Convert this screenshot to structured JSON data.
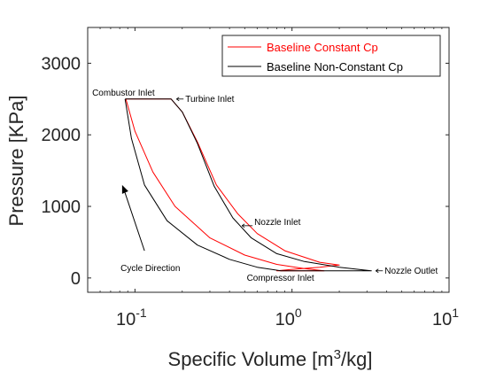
{
  "chart_data": {
    "type": "line",
    "xlabel": "Specific Volume [m",
    "xlabel_sup": "3",
    "xlabel_tail": "/kg]",
    "ylabel": "Pressure [KPa]",
    "x_scale": "log",
    "xlim": [
      0.05,
      10
    ],
    "ylim": [
      -200,
      3500
    ],
    "x_ticks": [
      {
        "value": 0.1,
        "base": "10",
        "exp": "-1"
      },
      {
        "value": 1,
        "base": "10",
        "exp": "0"
      },
      {
        "value": 10,
        "base": "10",
        "exp": "1"
      }
    ],
    "y_ticks": [
      0,
      1000,
      2000,
      3000
    ],
    "y_tick_labels": [
      "0",
      "1000",
      "2000",
      "3000"
    ],
    "grid": false,
    "legend_position": "top-right",
    "series": [
      {
        "name": "Baseline Constant Cp",
        "color": "#ff0000",
        "points": [
          [
            0.0875,
            2500
          ],
          [
            0.1,
            2050
          ],
          [
            0.13,
            1480
          ],
          [
            0.18,
            1000
          ],
          [
            0.3,
            560
          ],
          [
            0.5,
            320
          ],
          [
            0.8,
            190
          ],
          [
            1.2,
            130
          ],
          [
            1.6,
            100
          ],
          [
            1.5,
            100
          ],
          [
            1.2,
            100
          ],
          [
            0.9,
            100
          ],
          [
            0.8,
            100
          ],
          [
            1.0,
            120
          ],
          [
            1.5,
            150
          ],
          [
            2.0,
            180
          ],
          [
            1.5,
            220
          ],
          [
            0.9,
            380
          ],
          [
            0.6,
            620
          ],
          [
            0.45,
            900
          ],
          [
            0.33,
            1300
          ],
          [
            0.25,
            1900
          ],
          [
            0.2,
            2320
          ],
          [
            0.17,
            2500
          ],
          [
            0.0875,
            2500
          ]
        ]
      },
      {
        "name": "Baseline Non-Constant Cp",
        "color": "#000000",
        "points": [
          [
            0.0865,
            2500
          ],
          [
            0.095,
            1950
          ],
          [
            0.115,
            1300
          ],
          [
            0.16,
            800
          ],
          [
            0.25,
            460
          ],
          [
            0.4,
            260
          ],
          [
            0.6,
            150
          ],
          [
            0.85,
            100
          ],
          [
            3.2,
            100
          ],
          [
            2.0,
            150
          ],
          [
            1.2,
            230
          ],
          [
            0.8,
            340
          ],
          [
            0.55,
            560
          ],
          [
            0.42,
            840
          ],
          [
            0.32,
            1280
          ],
          [
            0.25,
            1880
          ],
          [
            0.2,
            2320
          ],
          [
            0.17,
            2500
          ],
          [
            0.0865,
            2500
          ]
        ]
      }
    ],
    "annotations": [
      {
        "id": "combustor-inlet",
        "text": "Combustor Inlet",
        "x": 0.0875,
        "y": 2500
      },
      {
        "id": "turbine-inlet",
        "text": "Turbine Inlet",
        "x": 0.17,
        "y": 2500
      },
      {
        "id": "nozzle-inlet",
        "text": "Nozzle Inlet",
        "x": 0.48,
        "y": 730
      },
      {
        "id": "cycle-direction",
        "text": "Cycle Direction",
        "x": 0.085,
        "y": 1250
      },
      {
        "id": "compressor-inlet",
        "text": "Compressor Inlet",
        "x": 0.9,
        "y": 100
      },
      {
        "id": "nozzle-outlet",
        "text": "Nozzle Outlet",
        "x": 3.2,
        "y": 100
      }
    ]
  }
}
